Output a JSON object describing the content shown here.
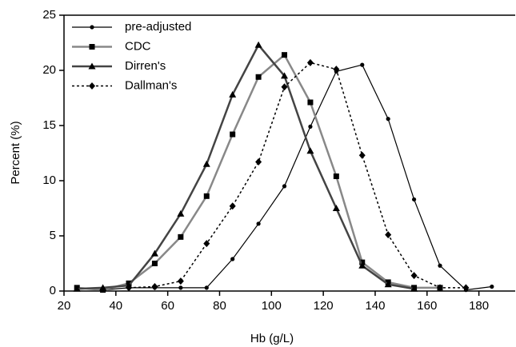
{
  "chart_data": {
    "type": "line",
    "x_label": "Hb (g/L)",
    "y_label": "Percent (%)",
    "xlim": [
      20,
      194
    ],
    "xticks": [
      20,
      40,
      60,
      80,
      100,
      120,
      140,
      160,
      180
    ],
    "ylim": [
      0,
      25
    ],
    "yticks": [
      0,
      5,
      10,
      15,
      20,
      25
    ],
    "legend": "upper left",
    "series": [
      {
        "name": "pre-adjusted",
        "color": "#000000",
        "width": 1.2,
        "style": "solid",
        "marker": "circle",
        "x": [
          25,
          35,
          45,
          55,
          65,
          75,
          85,
          95,
          105,
          115,
          125,
          135,
          145,
          155,
          165,
          175,
          185
        ],
        "values": [
          0.3,
          0.1,
          0.3,
          0.3,
          0.3,
          0.3,
          2.9,
          6.1,
          9.5,
          14.9,
          19.9,
          20.5,
          15.6,
          8.3,
          2.3,
          0.1,
          0.4
        ]
      },
      {
        "name": "CDC",
        "color": "#888888",
        "width": 2.5,
        "style": "solid",
        "marker": "square",
        "x": [
          25,
          35,
          45,
          55,
          65,
          75,
          85,
          95,
          105,
          115,
          125,
          135,
          145,
          155,
          165
        ],
        "values": [
          0.3,
          0.1,
          0.7,
          2.5,
          4.9,
          8.6,
          14.2,
          19.4,
          21.4,
          17.1,
          10.4,
          2.6,
          0.8,
          0.3,
          0.3
        ]
      },
      {
        "name": "Dirren's",
        "color": "#444444",
        "width": 2.5,
        "style": "solid",
        "marker": "triangle",
        "x": [
          25,
          35,
          45,
          55,
          65,
          75,
          85,
          95,
          105,
          115,
          125,
          135,
          145,
          155
        ],
        "values": [
          0.2,
          0.3,
          0.5,
          3.4,
          7.0,
          11.5,
          17.8,
          22.3,
          19.5,
          12.7,
          7.5,
          2.3,
          0.6,
          0.2
        ]
      },
      {
        "name": "Dallman's",
        "color": "#000000",
        "width": 1.5,
        "style": "dotted",
        "marker": "diamond",
        "x": [
          45,
          55,
          65,
          75,
          85,
          95,
          105,
          115,
          125,
          135,
          145,
          155,
          165,
          175
        ],
        "values": [
          0.3,
          0.4,
          0.9,
          4.3,
          7.7,
          11.7,
          18.5,
          20.7,
          20.1,
          12.3,
          5.1,
          1.4,
          0.3,
          0.3
        ]
      }
    ]
  }
}
